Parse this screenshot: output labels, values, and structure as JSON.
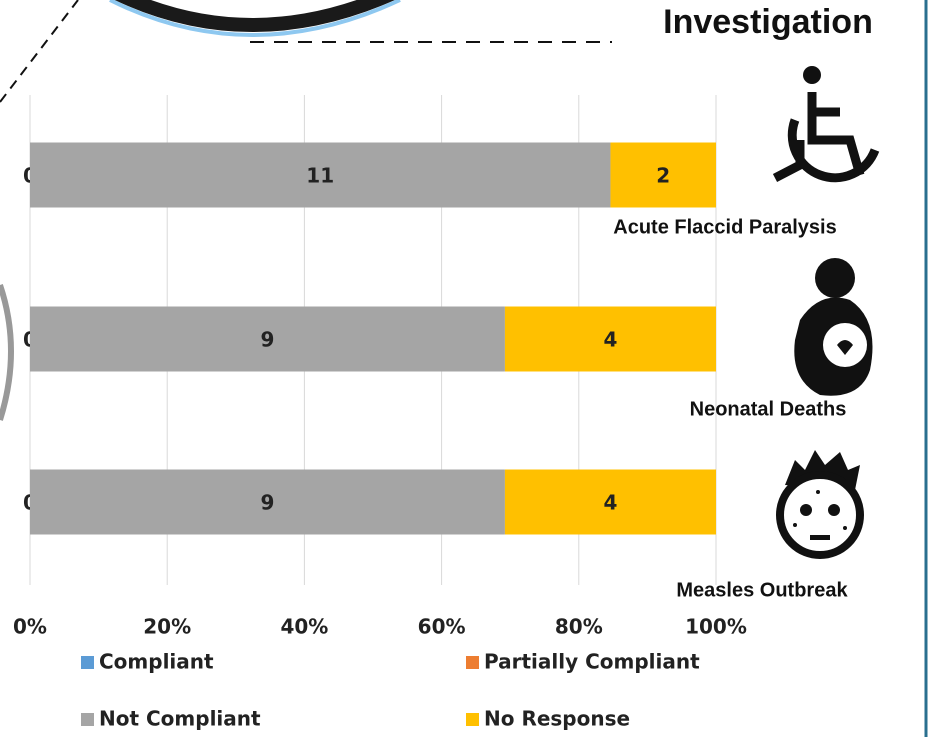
{
  "chart_data": {
    "type": "stacked_bar_100",
    "title": "Investigation",
    "categories": [
      "Acute Flaccid Paralysis",
      "Neonatal Deaths",
      "Measles Outbreak"
    ],
    "series": [
      {
        "name": "Compliant",
        "color": "#5b9bd5",
        "values": [
          0,
          0,
          0
        ]
      },
      {
        "name": "Partially Compliant",
        "color": "#ed7d31",
        "values": [
          0,
          0,
          0
        ],
        "show_labels": false
      },
      {
        "name": "Not Compliant",
        "color": "#a5a5a5",
        "values": [
          11,
          9,
          9
        ]
      },
      {
        "name": "No Response",
        "color": "#ffc000",
        "values": [
          2,
          4,
          4
        ]
      }
    ],
    "xlim": [
      0,
      100
    ],
    "xticks": [
      {
        "value": 0,
        "label": "0%"
      },
      {
        "value": 20,
        "label": "20%"
      },
      {
        "value": 40,
        "label": "40%"
      },
      {
        "value": 60,
        "label": "60%"
      },
      {
        "value": 80,
        "label": "80%"
      },
      {
        "value": 100,
        "label": "100%"
      }
    ],
    "grid": true
  }
}
